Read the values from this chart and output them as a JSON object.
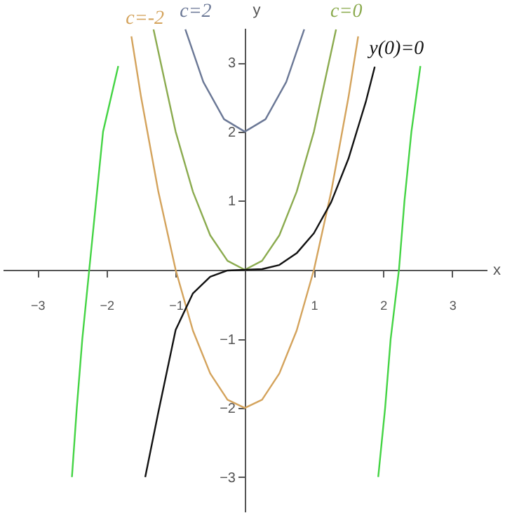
{
  "chart_data": {
    "type": "line",
    "xlabel": "x",
    "ylabel": "y",
    "xlim": [
      -3.5,
      3.5
    ],
    "ylim": [
      -3.5,
      3.5
    ],
    "xticks": [
      -3,
      -2,
      -1,
      1,
      2,
      3
    ],
    "yticks": [
      -3,
      -2,
      -1,
      1,
      2,
      3
    ],
    "grid": false,
    "legend": false,
    "series": [
      {
        "name": "c=-2",
        "color": "#d4a35c",
        "x": [
          -1.64,
          -1.5,
          -1.25,
          -1,
          -0.75,
          -0.5,
          -0.25,
          0,
          0.25,
          0.5,
          0.75,
          1,
          1.25,
          1.5,
          1.64
        ],
        "values": [
          3.38,
          2.5,
          1.13,
          0,
          -0.88,
          -1.5,
          -1.88,
          -2,
          -1.88,
          -1.5,
          -0.88,
          0,
          1.13,
          2.5,
          3.38
        ]
      },
      {
        "name": "c=2",
        "color": "#6b7896",
        "x": [
          -0.86,
          -0.6,
          -0.3,
          0,
          0.3,
          0.6,
          0.86
        ],
        "values": [
          3.48,
          2.72,
          2.18,
          2,
          2.18,
          2.72,
          3.48
        ]
      },
      {
        "name": "c=0",
        "color": "#8bab4f",
        "x": [
          1.32,
          1,
          0.75,
          0.5,
          0.25,
          0,
          -0.25,
          -0.5,
          -0.75,
          -1,
          -1.32
        ],
        "values": [
          3.48,
          2,
          1.13,
          0.5,
          0.13,
          0,
          0.13,
          0.5,
          1.13,
          2,
          3.48
        ]
      },
      {
        "name": "y(0)=0",
        "color": "#111111",
        "x": [
          1.88,
          1.75,
          1.5,
          1.25,
          1,
          0.75,
          0.5,
          0.25,
          0,
          -0.25,
          -0.5,
          -0.75,
          -1,
          -1.25,
          -1.44
        ],
        "values": [
          2.94,
          2.43,
          1.61,
          0.98,
          0.53,
          0.24,
          0.07,
          0.01,
          0,
          -0.01,
          -0.1,
          -0.34,
          -0.87,
          -2.06,
          -3
        ]
      },
      {
        "color": "#44d444",
        "x": [
          -2.5,
          -2.43,
          -2.35,
          -2.25,
          -2.15,
          -2.05,
          -1.83
        ],
        "values": [
          -3,
          -2,
          -1,
          0,
          1,
          2,
          2.95
        ]
      },
      {
        "color": "#44d444",
        "x": [
          1.93,
          2.03,
          2.11,
          2.23,
          2.31,
          2.41,
          2.54
        ],
        "values": [
          -3,
          -2,
          -1,
          0,
          1,
          2,
          2.95
        ]
      }
    ]
  }
}
